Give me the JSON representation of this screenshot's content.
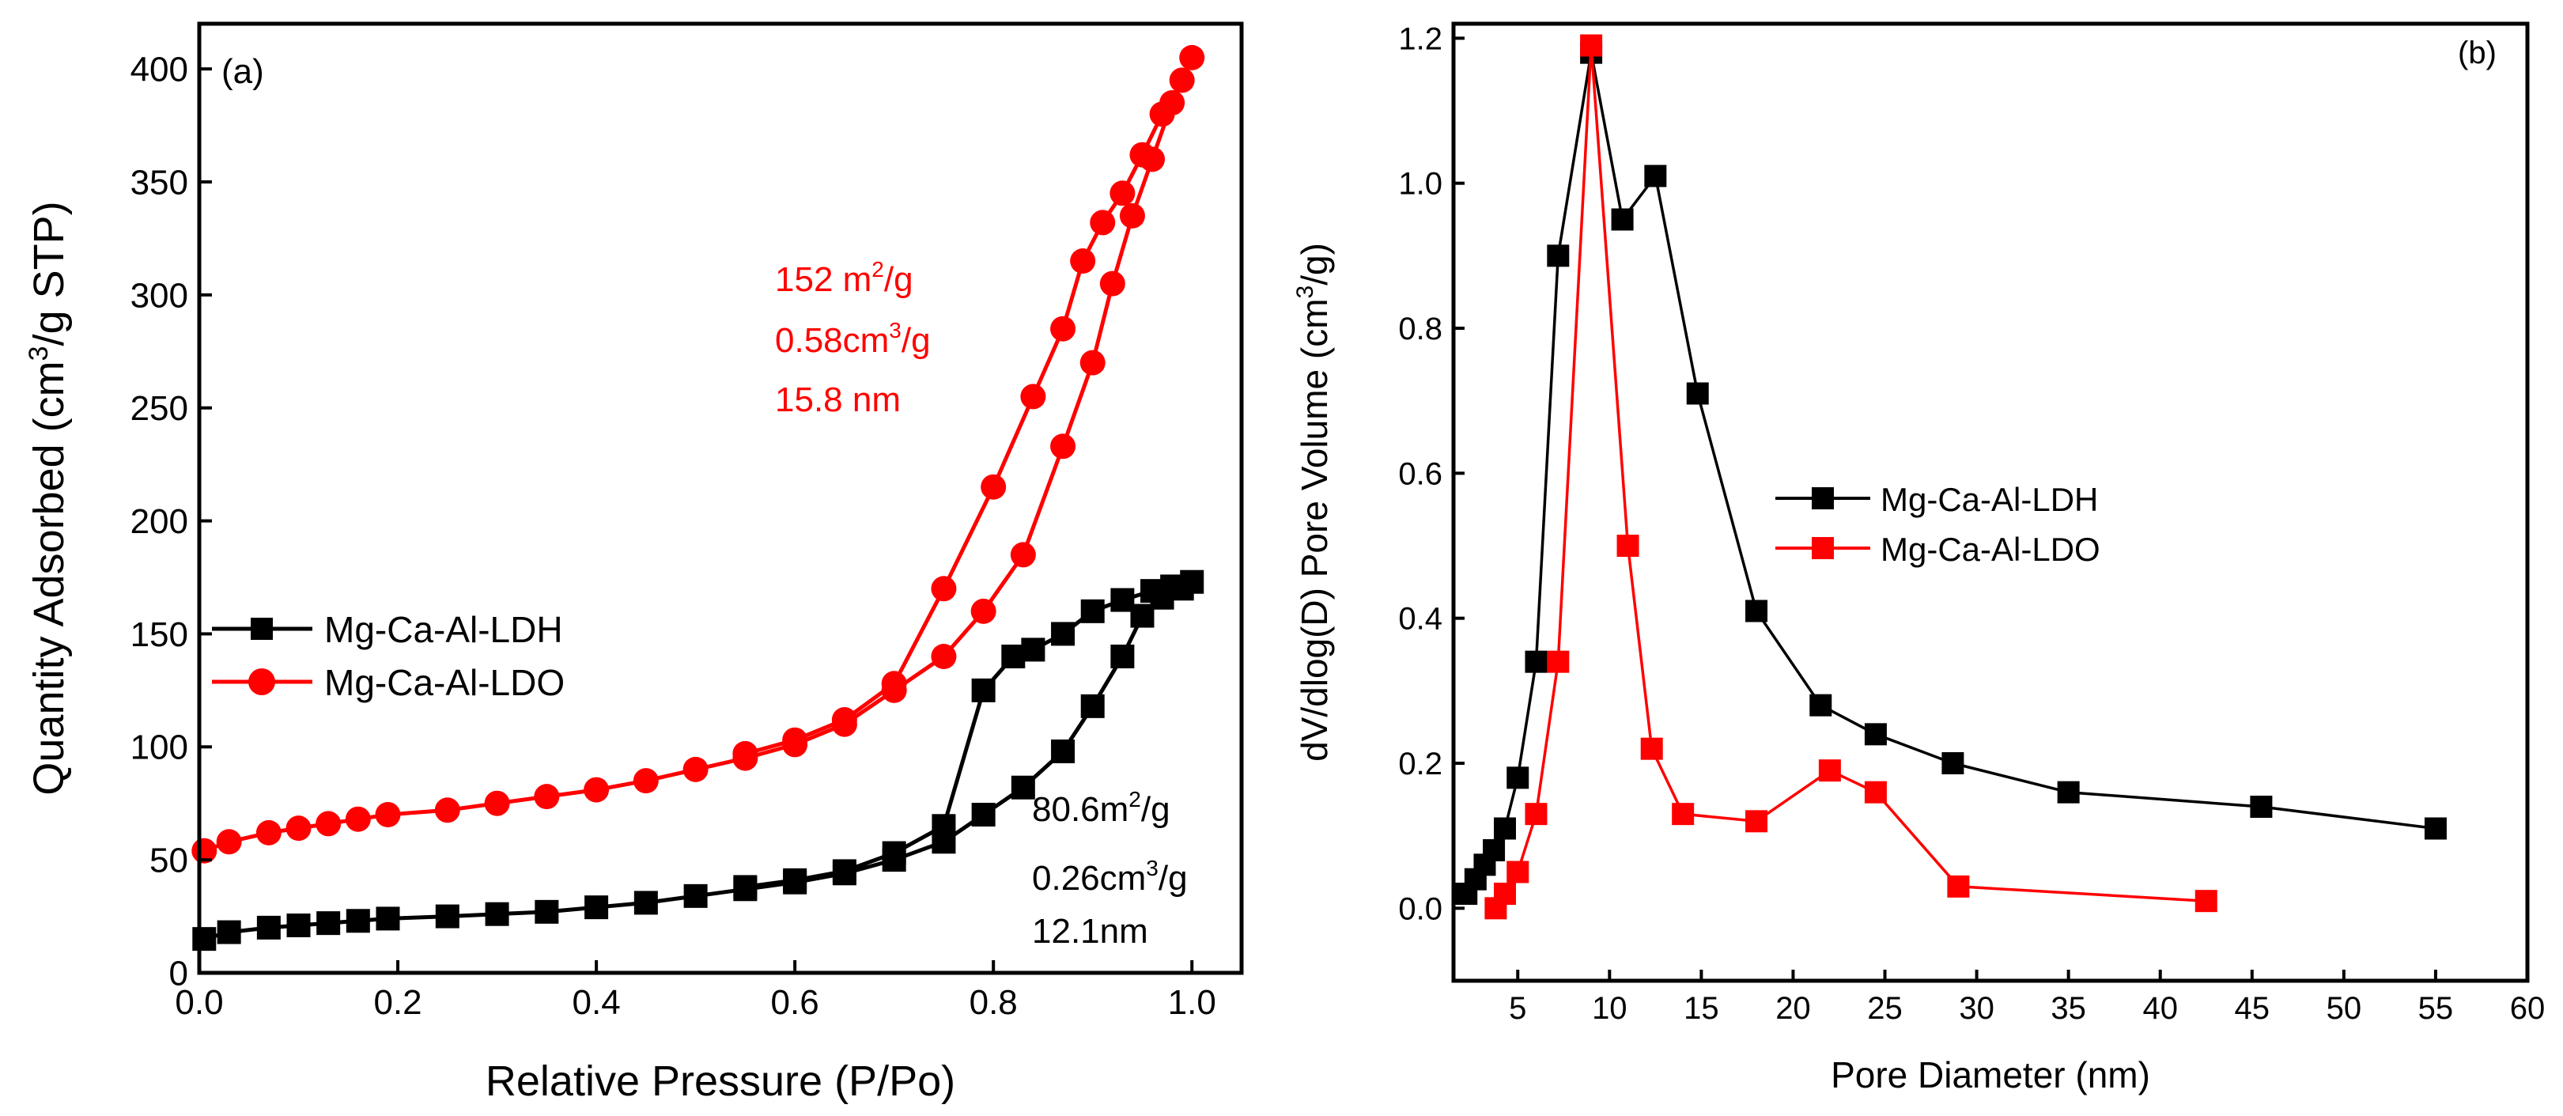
{
  "colors": {
    "ldh": "#000000",
    "ldo": "#ff0000"
  },
  "chart_data": [
    {
      "type": "line",
      "panel_label": "(a)",
      "xlabel": "Relative Pressure (P/Po)",
      "ylabel": "Quantity Adsorbed (cm",
      "ylabel_sup": "3",
      "ylabel_tail": "/g STP)",
      "xlim": [
        0.0,
        1.05
      ],
      "ylim": [
        0,
        420
      ],
      "xticks": [
        0.0,
        0.2,
        0.4,
        0.6,
        0.8,
        1.0
      ],
      "xtick_labels": [
        "0.0",
        "0.2",
        "0.4",
        "0.6",
        "0.8",
        "1.0"
      ],
      "yticks": [
        0,
        50,
        100,
        150,
        200,
        250,
        300,
        350,
        400
      ],
      "ytick_labels": [
        "0",
        "50",
        "100",
        "150",
        "200",
        "250",
        "300",
        "350",
        "400"
      ],
      "legend": [
        "Mg-Ca-Al-LDH",
        "Mg-Ca-Al-LDO"
      ],
      "series": [
        {
          "name": "Mg-Ca-Al-LDH",
          "marker": "square",
          "color": "#000000",
          "x": [
            0.005,
            0.03,
            0.07,
            0.1,
            0.13,
            0.16,
            0.19,
            0.25,
            0.3,
            0.35,
            0.4,
            0.45,
            0.5,
            0.55,
            0.6,
            0.65,
            0.7,
            0.75,
            0.79,
            0.83,
            0.87,
            0.9,
            0.93,
            0.95,
            0.97,
            0.99,
            1.0,
            0.98,
            0.96,
            0.93,
            0.9,
            0.87,
            0.84,
            0.82,
            0.79,
            0.75,
            0.7,
            0.65,
            0.6,
            0.55
          ],
          "y": [
            15,
            18,
            20,
            21,
            22,
            23,
            24,
            25,
            26,
            27,
            29,
            31,
            34,
            37,
            40,
            44,
            50,
            58,
            70,
            82,
            98,
            118,
            140,
            158,
            166,
            170,
            173,
            171,
            169,
            165,
            160,
            150,
            143,
            140,
            125,
            65,
            53,
            45,
            41,
            38
          ]
        },
        {
          "name": "Mg-Ca-Al-LDO",
          "marker": "circle",
          "color": "#ff0000",
          "x": [
            0.005,
            0.03,
            0.07,
            0.1,
            0.13,
            0.16,
            0.19,
            0.25,
            0.3,
            0.35,
            0.4,
            0.45,
            0.5,
            0.55,
            0.6,
            0.65,
            0.7,
            0.75,
            0.79,
            0.83,
            0.87,
            0.9,
            0.92,
            0.94,
            0.96,
            0.98,
            1.0,
            0.99,
            0.97,
            0.95,
            0.93,
            0.91,
            0.89,
            0.87,
            0.84,
            0.8,
            0.75,
            0.7,
            0.65,
            0.6,
            0.55
          ],
          "y": [
            54,
            58,
            62,
            64,
            66,
            68,
            70,
            72,
            75,
            78,
            81,
            85,
            90,
            95,
            101,
            110,
            125,
            140,
            160,
            185,
            233,
            270,
            305,
            335,
            360,
            385,
            405,
            395,
            380,
            362,
            345,
            332,
            315,
            285,
            255,
            215,
            170,
            128,
            112,
            103,
            97
          ]
        }
      ],
      "annotations": [
        {
          "series": "Mg-Ca-Al-LDO",
          "area": "152 m",
          "area_sup": "2",
          "area_tail": "/g",
          "volume": "0.58cm",
          "volume_sup": "3",
          "volume_tail": "/g",
          "pore": "15.8 nm"
        },
        {
          "series": "Mg-Ca-Al-LDH",
          "area": "80.6m",
          "area_sup": "2",
          "area_tail": "/g",
          "volume": "0.26cm",
          "volume_sup": "3",
          "volume_tail": "/g",
          "pore": "12.1nm"
        }
      ]
    },
    {
      "type": "line",
      "panel_label": "(b)",
      "xlabel": "Pore Diameter (nm)",
      "ylabel": "dV/dlog(D) Pore Volume (cm",
      "ylabel_sup": "3",
      "ylabel_tail": "/g)",
      "xlim": [
        1.5,
        60
      ],
      "ylim": [
        -0.1,
        1.22
      ],
      "xticks": [
        5,
        10,
        15,
        20,
        25,
        30,
        35,
        40,
        45,
        50,
        55,
        60
      ],
      "xtick_labels": [
        "5",
        "10",
        "15",
        "20",
        "25",
        "30",
        "35",
        "40",
        "45",
        "50",
        "55",
        "60"
      ],
      "yticks": [
        0.0,
        0.2,
        0.4,
        0.6,
        0.8,
        1.0,
        1.2
      ],
      "ytick_labels": [
        "0.0",
        "0.2",
        "0.4",
        "0.6",
        "0.8",
        "1.0",
        "1.2"
      ],
      "legend": [
        "Mg-Ca-Al-LDH",
        "Mg-Ca-Al-LDO"
      ],
      "series": [
        {
          "name": "Mg-Ca-Al-LDH",
          "marker": "square",
          "color": "#000000",
          "x": [
            2.2,
            2.7,
            3.2,
            3.7,
            4.3,
            5.0,
            6.0,
            7.2,
            9.0,
            10.7,
            12.5,
            14.8,
            18.0,
            21.5,
            24.5,
            28.7,
            35.0,
            45.5,
            55.0
          ],
          "y": [
            0.02,
            0.04,
            0.06,
            0.08,
            0.11,
            0.18,
            0.34,
            0.9,
            1.18,
            0.95,
            1.01,
            0.71,
            0.41,
            0.28,
            0.24,
            0.2,
            0.16,
            0.14,
            0.11
          ]
        },
        {
          "name": "Mg-Ca-Al-LDO",
          "marker": "square",
          "color": "#ff0000",
          "x": [
            3.8,
            4.3,
            5.0,
            6.0,
            7.2,
            9.0,
            11.0,
            12.3,
            14.0,
            18.0,
            22.0,
            24.5,
            29.0,
            42.5
          ],
          "y": [
            0.0,
            0.02,
            0.05,
            0.13,
            0.34,
            1.19,
            0.5,
            0.22,
            0.13,
            0.12,
            0.19,
            0.16,
            0.03,
            0.01
          ]
        }
      ]
    }
  ]
}
